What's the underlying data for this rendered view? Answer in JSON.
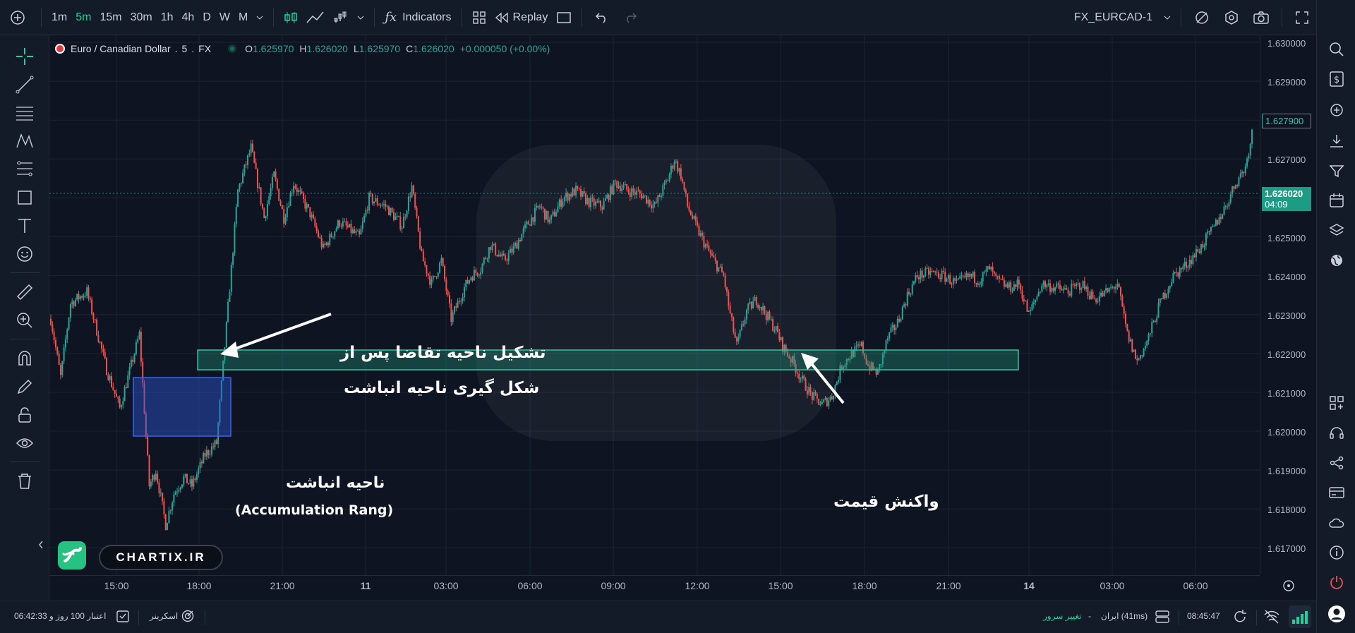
{
  "topbar": {
    "intervals": [
      "1m",
      "5m",
      "15m",
      "30m",
      "1h",
      "4h",
      "D",
      "W",
      "M"
    ],
    "active_interval": "5m",
    "indicators_label": "Indicators",
    "replay_label": "Replay",
    "symbol": "FX_EURCAD-1"
  },
  "legend": {
    "symbol_desc": "Euro / Canadian Dollar",
    "interval": "5",
    "exchange": "FX",
    "open_label": "O",
    "open": "1.625970",
    "high_label": "H",
    "high": "1.626020",
    "low_label": "L",
    "low": "1.625970",
    "close_label": "C",
    "close": "1.626020",
    "change": "+0.000050 (+0.00%)"
  },
  "price_axis": {
    "ticks": [
      "1.630000",
      "1.629000",
      "1.628000",
      "1.627000",
      "1.626000",
      "1.625000",
      "1.624000",
      "1.623000",
      "1.622000",
      "1.621000",
      "1.620000",
      "1.619000",
      "1.618000",
      "1.617000"
    ],
    "last_price_tag": "1.627900",
    "current_price": "1.626020",
    "countdown": "04:09"
  },
  "time_axis": {
    "ticks": [
      "15:00",
      "18:00",
      "21:00",
      "11",
      "03:00",
      "06:00",
      "09:00",
      "12:00",
      "15:00",
      "18:00",
      "21:00",
      "14",
      "03:00",
      "06:00"
    ]
  },
  "annotations": {
    "demand_line1": "تشکیل ناحیه تقاضا پس از",
    "demand_line2": "شکل گیری ناحیه انباشت",
    "accum_fa": "ناحیه انباشت",
    "accum_en": "(Accumulation Rang)",
    "reaction": "واکنش قیمت"
  },
  "brand": {
    "text": "CHARTIX.IR"
  },
  "statusbar": {
    "credit": "اعتبار  100 روز و 06:42:33",
    "screener": "اسکرینر",
    "change_server": "تغییر سرور",
    "dash": "-",
    "server": "ایران (41ms)",
    "clock": "08:45:47"
  },
  "colors": {
    "up": "#26a69a",
    "down": "#ef5350",
    "accent": "#26d09a",
    "zone_demand": "#1f9b7e",
    "zone_accum": "#2f55d4"
  },
  "chart_data": {
    "type": "candlestick",
    "y_range": [
      1.6163,
      1.6302
    ],
    "x_labels": [
      "15:00",
      "18:00",
      "21:00",
      "11",
      "03:00",
      "06:00",
      "09:00",
      "12:00",
      "15:00",
      "18:00",
      "21:00",
      "14",
      "03:00",
      "06:00"
    ],
    "path": [
      [
        0,
        1.6229
      ],
      [
        6,
        1.6214
      ],
      [
        12,
        1.6233
      ],
      [
        22,
        1.6236
      ],
      [
        34,
        1.6216
      ],
      [
        42,
        1.6206
      ],
      [
        54,
        1.6225
      ],
      [
        60,
        1.6186
      ],
      [
        64,
        1.619
      ],
      [
        70,
        1.6176
      ],
      [
        75,
        1.6184
      ],
      [
        81,
        1.6188
      ],
      [
        86,
        1.6186
      ],
      [
        94,
        1.6194
      ],
      [
        101,
        1.6197
      ],
      [
        108,
        1.6232
      ],
      [
        114,
        1.6262
      ],
      [
        122,
        1.6273
      ],
      [
        130,
        1.6255
      ],
      [
        136,
        1.6266
      ],
      [
        142,
        1.6255
      ],
      [
        148,
        1.6264
      ],
      [
        158,
        1.6256
      ],
      [
        166,
        1.6247
      ],
      [
        176,
        1.6254
      ],
      [
        188,
        1.625
      ],
      [
        194,
        1.626
      ],
      [
        204,
        1.6258
      ],
      [
        214,
        1.6253
      ],
      [
        220,
        1.6263
      ],
      [
        226,
        1.6245
      ],
      [
        232,
        1.6238
      ],
      [
        238,
        1.6244
      ],
      [
        244,
        1.6229
      ],
      [
        252,
        1.6237
      ],
      [
        256,
        1.624
      ],
      [
        262,
        1.6242
      ],
      [
        268,
        1.6248
      ],
      [
        276,
        1.6244
      ],
      [
        282,
        1.6247
      ],
      [
        290,
        1.6253
      ],
      [
        298,
        1.6258
      ],
      [
        304,
        1.6254
      ],
      [
        312,
        1.626
      ],
      [
        320,
        1.6262
      ],
      [
        328,
        1.6259
      ],
      [
        336,
        1.6258
      ],
      [
        344,
        1.6264
      ],
      [
        352,
        1.6262
      ],
      [
        360,
        1.6261
      ],
      [
        368,
        1.6258
      ],
      [
        376,
        1.6265
      ],
      [
        380,
        1.627
      ],
      [
        384,
        1.6266
      ],
      [
        388,
        1.6258
      ],
      [
        394,
        1.6252
      ],
      [
        400,
        1.6247
      ],
      [
        404,
        1.6244
      ],
      [
        410,
        1.624
      ],
      [
        414,
        1.623
      ],
      [
        418,
        1.6222
      ],
      [
        424,
        1.6231
      ],
      [
        430,
        1.6234
      ],
      [
        436,
        1.623
      ],
      [
        442,
        1.6226
      ],
      [
        446,
        1.6222
      ],
      [
        452,
        1.6218
      ],
      [
        458,
        1.6213
      ],
      [
        464,
        1.6209
      ],
      [
        470,
        1.6207
      ],
      [
        476,
        1.6209
      ],
      [
        482,
        1.6217
      ],
      [
        488,
        1.622
      ],
      [
        494,
        1.6222
      ],
      [
        498,
        1.6217
      ],
      [
        504,
        1.6215
      ],
      [
        510,
        1.6224
      ],
      [
        516,
        1.6228
      ],
      [
        522,
        1.6235
      ],
      [
        528,
        1.624
      ],
      [
        536,
        1.6241
      ],
      [
        544,
        1.624
      ],
      [
        552,
        1.6238
      ],
      [
        560,
        1.624
      ],
      [
        566,
        1.6239
      ],
      [
        572,
        1.6242
      ],
      [
        576,
        1.6239
      ],
      [
        584,
        1.6237
      ],
      [
        590,
        1.6238
      ],
      [
        596,
        1.623
      ],
      [
        604,
        1.6238
      ],
      [
        612,
        1.6237
      ],
      [
        620,
        1.6236
      ],
      [
        628,
        1.6238
      ],
      [
        636,
        1.6234
      ],
      [
        644,
        1.6236
      ],
      [
        650,
        1.6238
      ],
      [
        656,
        1.6225
      ],
      [
        662,
        1.6218
      ],
      [
        668,
        1.6223
      ],
      [
        676,
        1.6233
      ],
      [
        684,
        1.624
      ],
      [
        692,
        1.6243
      ],
      [
        700,
        1.6247
      ],
      [
        708,
        1.6252
      ],
      [
        716,
        1.6258
      ],
      [
        722,
        1.6264
      ],
      [
        728,
        1.6268
      ],
      [
        732,
        1.6277
      ]
    ]
  }
}
